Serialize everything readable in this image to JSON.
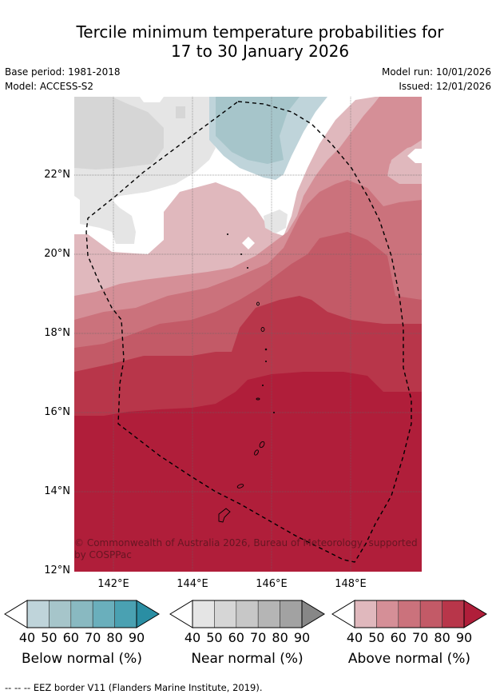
{
  "title": {
    "line1": "Tercile minimum temperature probabilities for",
    "line2": "17 to 30 January 2026"
  },
  "meta": {
    "base_period": "Base period: 1981-2018",
    "model": "Model: ACCESS-S2",
    "model_run": "Model run: 10/01/2026",
    "issued": "Issued: 12/01/2026"
  },
  "map": {
    "lat_labels": [
      "22°N",
      "20°N",
      "18°N",
      "16°N",
      "14°N",
      "12°N"
    ],
    "lon_labels": [
      "142°E",
      "144°E",
      "146°E",
      "148°E"
    ],
    "copyright": "© Commonwealth of Australia 2026, Bureau of Meteorology, supported by COSPPac"
  },
  "legends": [
    {
      "caption": "Below normal (%)",
      "ticks": [
        "40",
        "50",
        "60",
        "70",
        "80",
        "90"
      ],
      "colors": [
        "#bfd4da",
        "#a6c5ca",
        "#89b9c1",
        "#6aafbc",
        "#4aa1b2",
        "#2a8ea3"
      ]
    },
    {
      "caption": "Near normal (%)",
      "ticks": [
        "40",
        "50",
        "60",
        "70",
        "80",
        "90"
      ],
      "colors": [
        "#e5e5e5",
        "#d6d6d6",
        "#c7c7c7",
        "#b5b5b5",
        "#a2a2a2",
        "#878787"
      ]
    },
    {
      "caption": "Above normal (%)",
      "ticks": [
        "40",
        "50",
        "60",
        "70",
        "80",
        "90"
      ],
      "colors": [
        "#e0b8bd",
        "#d58f97",
        "#cb727c",
        "#c35a67",
        "#b8364a",
        "#b01e3a"
      ]
    }
  ],
  "footer": "--  --  -- EEZ border V11 (Flanders Marine Institute, 2019)."
}
